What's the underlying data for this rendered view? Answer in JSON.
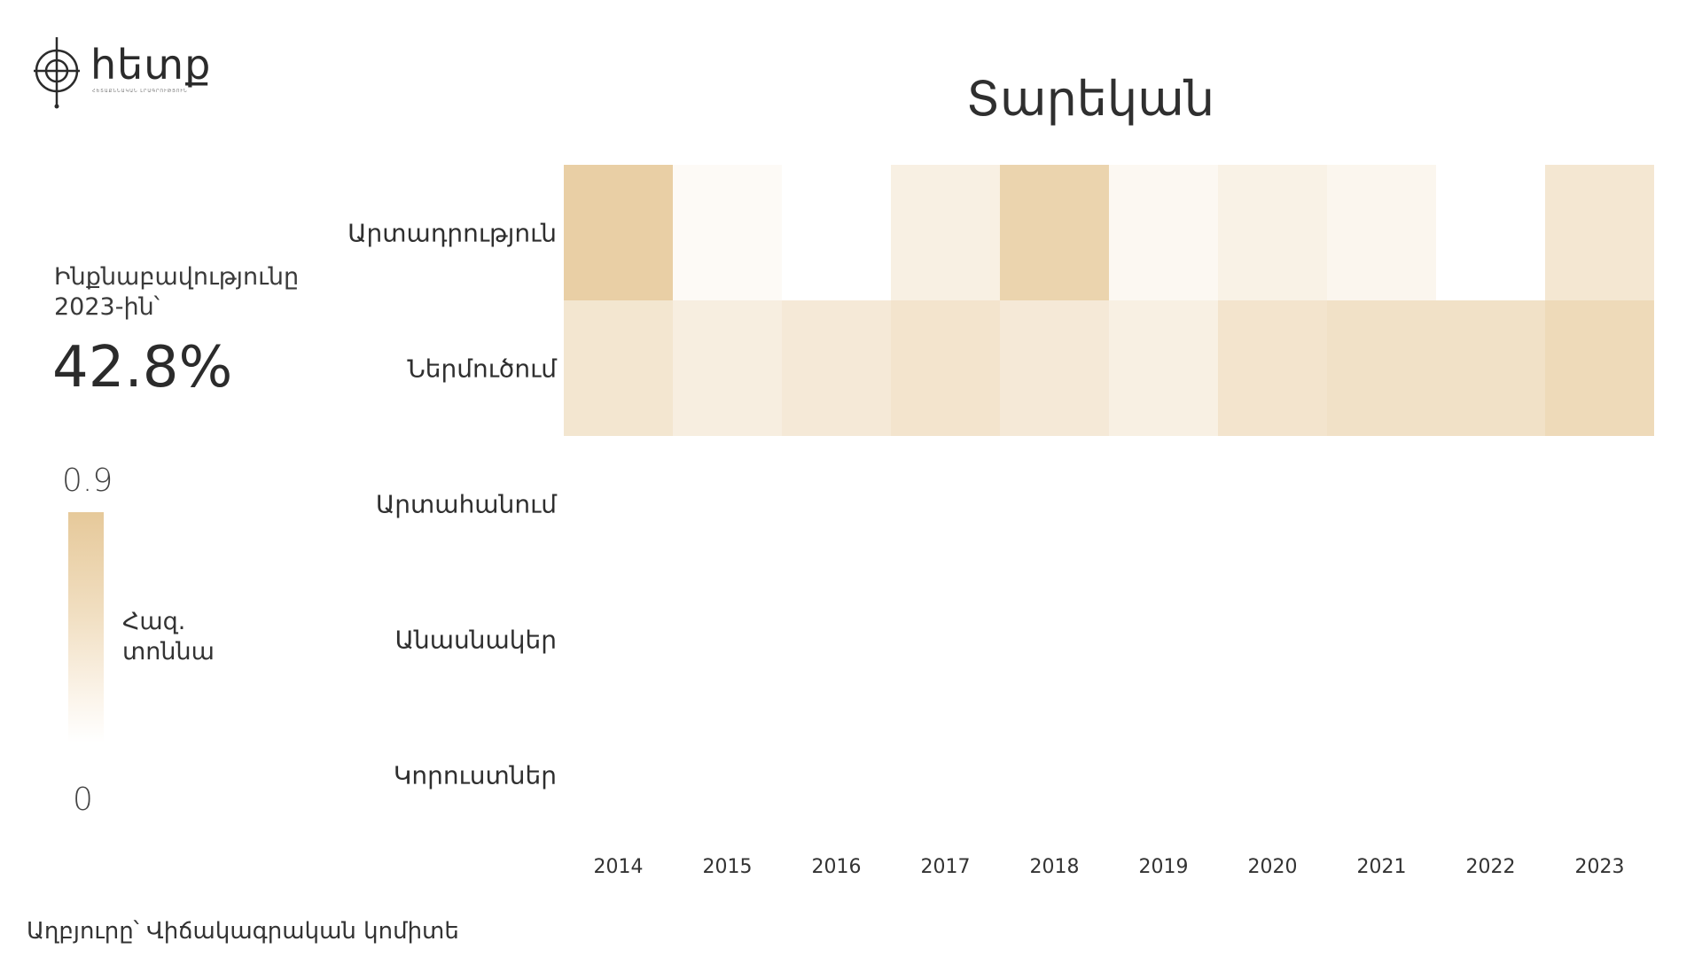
{
  "logo": {
    "text": "հետք",
    "subtitle": "ՀԵՏԱՔՆՆԱԿԱՆ ԼՐԱԳՐՈՒԹՅՈՒՆ"
  },
  "kpi": {
    "label_line1": "Ինքնաբավությունը",
    "label_line2": "2023-ին՝",
    "value": "42.8%"
  },
  "legend": {
    "max": "0.9",
    "min": "0",
    "unit_line1": "Հազ.",
    "unit_line2": "տոննա",
    "color_high": "#e6c99a",
    "color_low": "#ffffff"
  },
  "source": "Աղբյուրը՝ Վիճակագրական կոմիտե",
  "chart_data": {
    "type": "heatmap",
    "title": "Տարեկան",
    "rows": [
      "Արտադրություն",
      "Ներմուծում",
      "Արտահանում",
      "Անասնակեր",
      "Կորուստներ"
    ],
    "columns": [
      "2014",
      "2015",
      "2016",
      "2017",
      "2018",
      "2019",
      "2020",
      "2021",
      "2022",
      "2023"
    ],
    "values": [
      [
        0.8,
        0.08,
        0.0,
        0.25,
        0.72,
        0.12,
        0.22,
        0.15,
        0.0,
        0.4
      ],
      [
        0.42,
        0.28,
        0.36,
        0.45,
        0.36,
        0.25,
        0.45,
        0.5,
        0.5,
        0.62
      ],
      [
        0,
        0,
        0,
        0,
        0,
        0,
        0,
        0,
        0,
        0
      ],
      [
        0,
        0,
        0,
        0,
        0,
        0,
        0,
        0,
        0,
        0
      ],
      [
        0,
        0,
        0,
        0,
        0,
        0,
        0,
        0,
        0,
        0
      ]
    ],
    "vmin": 0,
    "vmax": 0.9,
    "legend_placement": "left"
  }
}
